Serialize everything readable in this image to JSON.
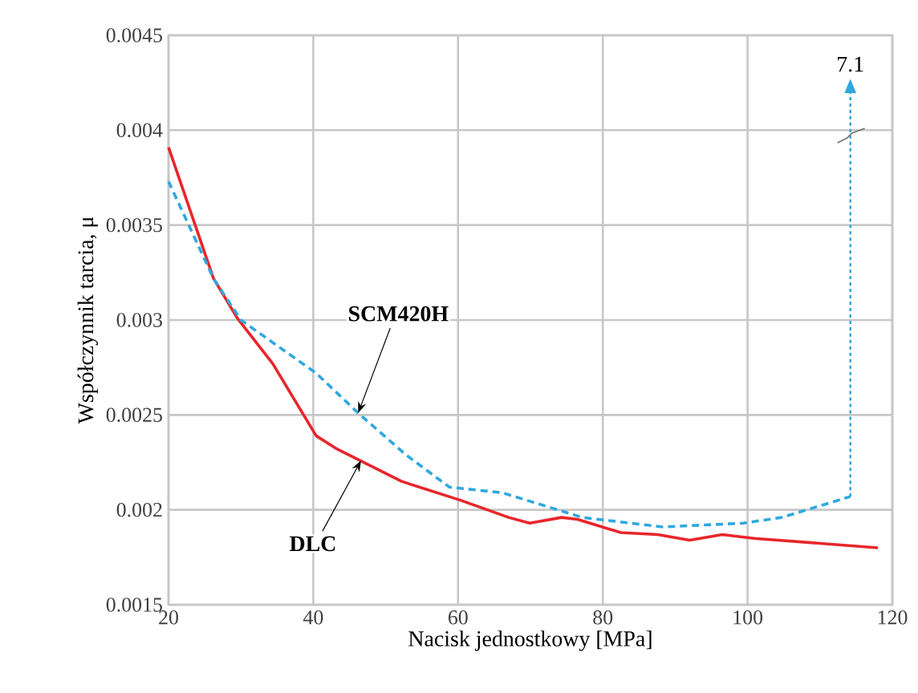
{
  "chart_data": {
    "type": "line",
    "xlabel": "Nacisk jednostkowy [MPa]",
    "ylabel": "Współczynnik tarcia, μ",
    "xlim": [
      20,
      120
    ],
    "xticks": [
      20,
      40,
      60,
      80,
      100,
      120
    ],
    "ylim": [
      0.0015,
      0.0045
    ],
    "yticks": [
      0.0015,
      0.002,
      0.0025,
      0.003,
      0.0035,
      0.004,
      0.0045
    ],
    "grid": true,
    "series": [
      {
        "color": "#e8262b",
        "line_style": "solid",
        "x": [
          20,
          26.2,
          29.5,
          34.4,
          40.4,
          43.3,
          52.2,
          60.4,
          67,
          69.9,
          74.3,
          76.5,
          82.5,
          87.6,
          92,
          96.5,
          100.9,
          118
        ],
        "values": [
          0.00391,
          0.00322,
          0.00301,
          0.00277,
          0.00239,
          0.00232,
          0.00215,
          0.00205,
          0.00196,
          0.00193,
          0.00196,
          0.00195,
          0.00188,
          0.00187,
          0.00184,
          0.00187,
          0.00185,
          0.0018
        ]
      },
      {
        "color": "#2fa8e0",
        "line_style": "dashed",
        "x": [
          20,
          26.2,
          30,
          40.4,
          46.2,
          52.8,
          58.8,
          66.1,
          72.1,
          77.2,
          88.3,
          99.4,
          104.7,
          114.2
        ],
        "values": [
          0.00373,
          0.00322,
          0.003,
          0.00272,
          0.00251,
          0.00229,
          0.00212,
          0.00209,
          0.00202,
          0.00196,
          0.00191,
          0.00193,
          0.00196,
          0.00207
        ]
      }
    ],
    "annotations": [
      {
        "text": "SCM420H",
        "x": 46.2,
        "y": 0.00251
      },
      {
        "text": "DLC",
        "x": 46.6,
        "y": 0.00226
      },
      {
        "text": "7.1",
        "x": 114.2
      }
    ]
  }
}
